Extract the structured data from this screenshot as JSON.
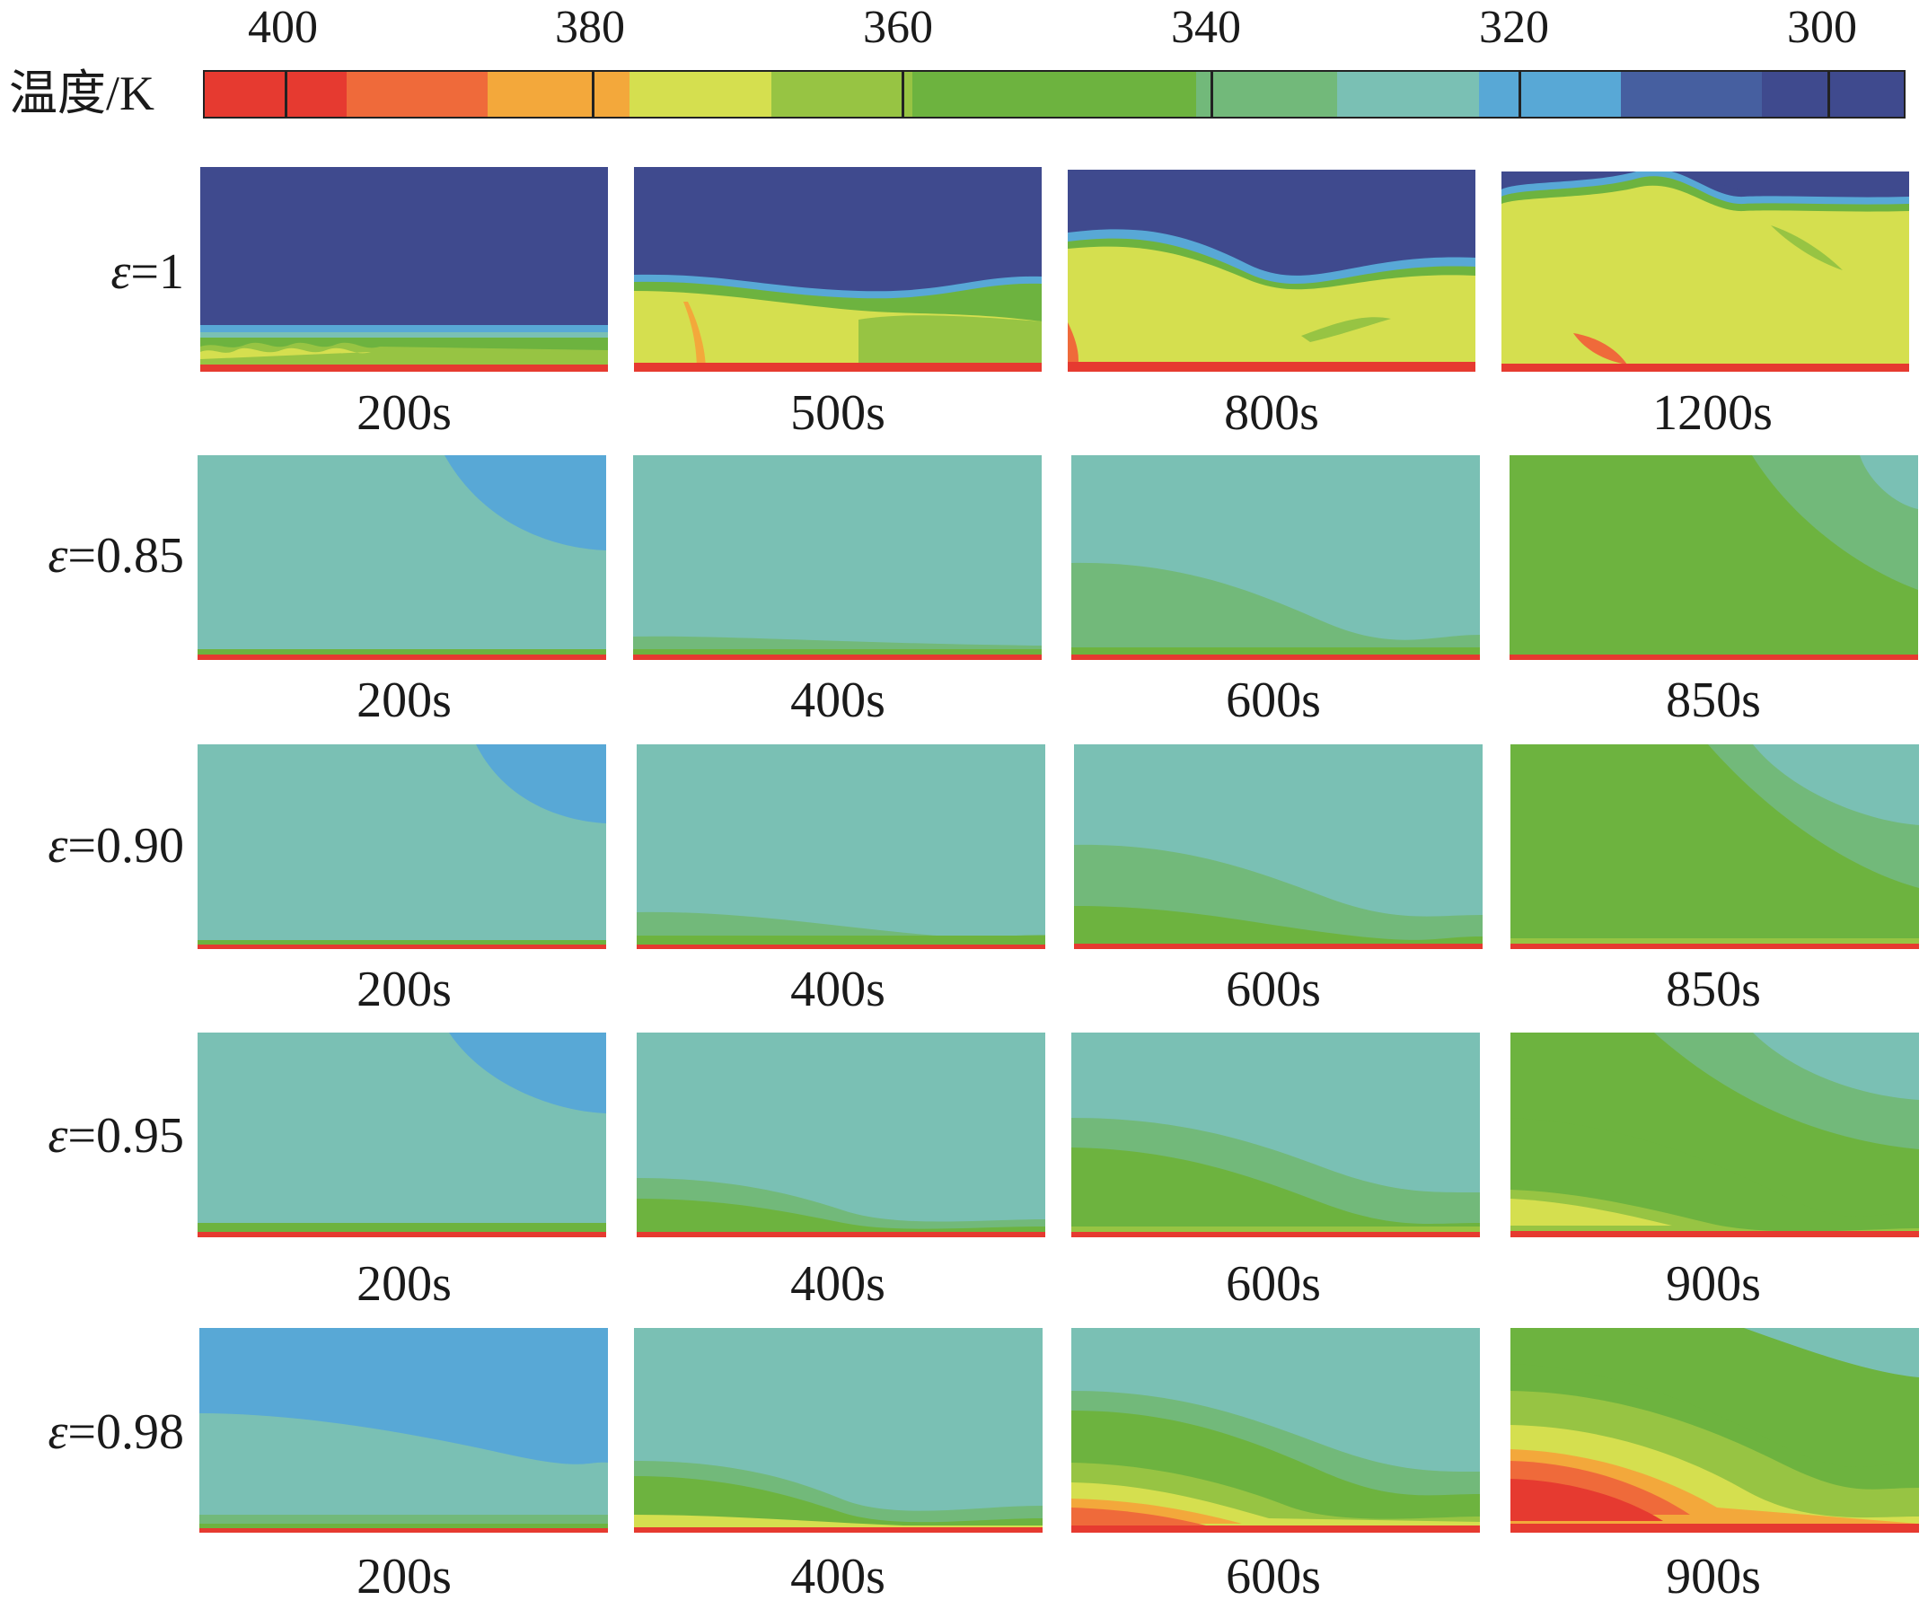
{
  "colorbar": {
    "title": "温度/K",
    "ticks": [
      "400",
      "380",
      "360",
      "340",
      "320",
      "300"
    ],
    "colors": [
      "#e63a30",
      "#ef6a3a",
      "#f3a83b",
      "#d5df4f",
      "#97c443",
      "#6db33f",
      "#6db33f",
      "#72b97a",
      "#7ac0b4",
      "#58a8d6",
      "#465fa0",
      "#3f4a8e"
    ]
  },
  "rows": [
    {
      "eps_symbol": "ε",
      "eps_value": "=1",
      "times": [
        "200s",
        "500s",
        "800s",
        "1200s"
      ]
    },
    {
      "eps_symbol": "ε",
      "eps_value": "=0.85",
      "times": [
        "200s",
        "400s",
        "600s",
        "850s"
      ]
    },
    {
      "eps_symbol": "ε",
      "eps_value": "=0.90",
      "times": [
        "200s",
        "400s",
        "600s",
        "850s"
      ]
    },
    {
      "eps_symbol": "ε",
      "eps_value": "=0.95",
      "times": [
        "200s",
        "400s",
        "600s",
        "900s"
      ]
    },
    {
      "eps_symbol": "ε",
      "eps_value": "=0.98",
      "times": [
        "200s",
        "400s",
        "600s",
        "900s"
      ]
    }
  ]
}
